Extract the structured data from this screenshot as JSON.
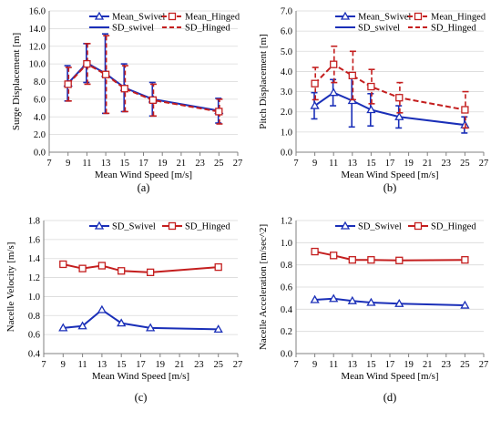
{
  "colors": {
    "swivel": "#1a2fb8",
    "hinged": "#c41e1e",
    "axis": "#808080",
    "grid": "#d9d9d9"
  },
  "chart_data": [
    {
      "type": "line",
      "panel_label": "(a)",
      "xlabel": "Mean Wind Speed [m/s]",
      "ylabel": "Surge Displacement [m]",
      "xlim": [
        7,
        27
      ],
      "xticks": [
        7,
        9,
        11,
        13,
        15,
        17,
        19,
        21,
        23,
        25,
        27
      ],
      "ylim": [
        0,
        16
      ],
      "yticks": [
        0.0,
        2.0,
        4.0,
        6.0,
        8.0,
        10.0,
        12.0,
        14.0,
        16.0
      ],
      "ytick_decimals": 1,
      "legend_position": "top-right",
      "legend": [
        {
          "label": "Mean_Swivel",
          "series": 0,
          "col": 0,
          "row": 0
        },
        {
          "label": "Mean_Hinged",
          "series": 1,
          "col": 1,
          "row": 0
        },
        {
          "label": "SD_swivel",
          "series": 0,
          "col": 0,
          "row": 1,
          "error": true
        },
        {
          "label": "SD_Hinged",
          "series": 1,
          "col": 1,
          "row": 1,
          "error": true
        }
      ],
      "x": [
        9,
        11,
        13,
        15,
        18,
        25
      ],
      "series": [
        {
          "name": "Mean_Swivel",
          "color": "#1a2fb8",
          "dashed": false,
          "marker": "triangle",
          "values": [
            7.8,
            10.1,
            8.9,
            7.3,
            6.0,
            4.7
          ],
          "error": [
            2.0,
            2.2,
            4.5,
            2.7,
            1.9,
            1.4
          ]
        },
        {
          "name": "Mean_Hinged",
          "color": "#c41e1e",
          "dashed": true,
          "marker": "square",
          "values": [
            7.7,
            10.0,
            8.8,
            7.2,
            5.9,
            4.6
          ],
          "error": [
            1.9,
            2.3,
            4.4,
            2.6,
            1.8,
            1.4
          ]
        }
      ]
    },
    {
      "type": "line",
      "panel_label": "(b)",
      "xlabel": "Mean Wind Speed [m/s]",
      "ylabel": "Pitch Displacement [m]",
      "xlim": [
        7,
        27
      ],
      "xticks": [
        7,
        9,
        11,
        13,
        15,
        17,
        19,
        21,
        23,
        25,
        27
      ],
      "ylim": [
        0,
        7
      ],
      "yticks": [
        0.0,
        1.0,
        2.0,
        3.0,
        4.0,
        5.0,
        6.0,
        7.0
      ],
      "ytick_decimals": 1,
      "legend_position": "top-right",
      "legend": [
        {
          "label": "Mean_Swivel",
          "series": 0,
          "col": 0,
          "row": 0
        },
        {
          "label": "Mean_Hinged",
          "series": 1,
          "col": 1,
          "row": 0
        },
        {
          "label": "SD_swivel",
          "series": 0,
          "col": 0,
          "row": 1,
          "error": true
        },
        {
          "label": "SD_Hinged",
          "series": 1,
          "col": 1,
          "row": 1,
          "error": true
        }
      ],
      "x": [
        9,
        11,
        13,
        15,
        18,
        25
      ],
      "series": [
        {
          "name": "Mean_Swivel",
          "color": "#1a2fb8",
          "dashed": false,
          "marker": "triangle",
          "values": [
            2.3,
            2.95,
            2.55,
            2.1,
            1.75,
            1.35
          ],
          "error": [
            0.65,
            0.65,
            1.3,
            0.8,
            0.55,
            0.4
          ]
        },
        {
          "name": "Mean_Hinged",
          "color": "#c41e1e",
          "dashed": true,
          "marker": "square",
          "values": [
            3.4,
            4.35,
            3.8,
            3.25,
            2.7,
            2.1
          ],
          "error": [
            0.8,
            0.9,
            1.2,
            0.85,
            0.75,
            0.9
          ]
        }
      ]
    },
    {
      "type": "line",
      "panel_label": "(c)",
      "xlabel": "Mean Wind Speed [m/s]",
      "ylabel": "Nacelle Velocity [m/s]",
      "xlim": [
        7,
        27
      ],
      "xticks": [
        7,
        9,
        11,
        13,
        15,
        17,
        19,
        21,
        23,
        25,
        27
      ],
      "ylim": [
        0.4,
        1.8
      ],
      "yticks": [
        0.4,
        0.6,
        0.8,
        1.0,
        1.2,
        1.4,
        1.6,
        1.8
      ],
      "ytick_decimals": 1,
      "legend_position": "top-right",
      "legend": [
        {
          "label": "SD_Swivel",
          "series": 0,
          "col": 0,
          "row": 0
        },
        {
          "label": "SD_Hinged",
          "series": 1,
          "col": 1,
          "row": 0
        }
      ],
      "x": [
        9,
        11,
        13,
        15,
        18,
        25
      ],
      "series": [
        {
          "name": "SD_Swivel",
          "color": "#1a2fb8",
          "dashed": false,
          "marker": "triangle",
          "values": [
            0.67,
            0.69,
            0.86,
            0.72,
            0.67,
            0.655
          ]
        },
        {
          "name": "SD_Hinged",
          "color": "#c41e1e",
          "dashed": false,
          "marker": "square",
          "values": [
            1.34,
            1.295,
            1.325,
            1.27,
            1.255,
            1.31
          ]
        }
      ]
    },
    {
      "type": "line",
      "panel_label": "(d)",
      "xlabel": "Mean Wind Speed [m/s]",
      "ylabel": "Nacelle Acceleration [m/sec^2]",
      "xlim": [
        7,
        27
      ],
      "xticks": [
        7,
        9,
        11,
        13,
        15,
        17,
        19,
        21,
        23,
        25,
        27
      ],
      "ylim": [
        0,
        1.2
      ],
      "yticks": [
        0.0,
        0.2,
        0.4,
        0.6,
        0.8,
        1.0,
        1.2
      ],
      "ytick_decimals": 1,
      "legend_position": "top-right",
      "legend": [
        {
          "label": "SD_Swivel",
          "series": 0,
          "col": 0,
          "row": 0
        },
        {
          "label": "SD_Hinged",
          "series": 1,
          "col": 1,
          "row": 0
        }
      ],
      "x": [
        9,
        11,
        13,
        15,
        18,
        25
      ],
      "series": [
        {
          "name": "SD_Swivel",
          "color": "#1a2fb8",
          "dashed": false,
          "marker": "triangle",
          "values": [
            0.485,
            0.495,
            0.475,
            0.46,
            0.45,
            0.435
          ]
        },
        {
          "name": "SD_Hinged",
          "color": "#c41e1e",
          "dashed": false,
          "marker": "square",
          "values": [
            0.92,
            0.885,
            0.845,
            0.845,
            0.84,
            0.845
          ]
        }
      ]
    }
  ]
}
